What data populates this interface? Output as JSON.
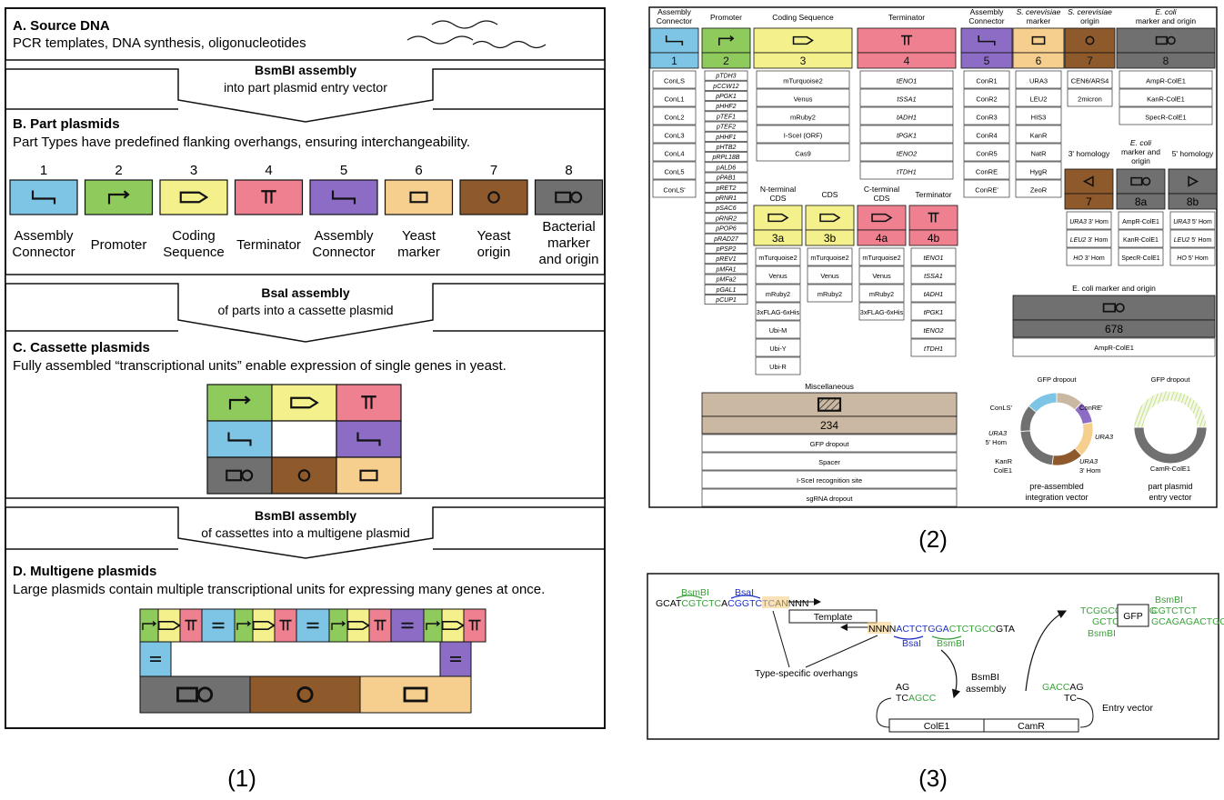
{
  "panel1": {
    "label": "(1)",
    "A": {
      "title": "A. Source DNA",
      "text": "PCR templates, DNA synthesis, oligonucleotides"
    },
    "arrowAB": {
      "title": "BsmBI assembly",
      "sub": "into part plasmid entry vector"
    },
    "B": {
      "title": "B. Part plasmids",
      "text": "Part Types have predefined flanking overhangs, ensuring interchangeability."
    },
    "parts": [
      {
        "num": "1",
        "label": [
          "Assembly",
          "Connector"
        ],
        "color": "#7ec4e4",
        "icon": "connector-icon"
      },
      {
        "num": "2",
        "label": [
          "Promoter"
        ],
        "color": "#8fcb5c",
        "icon": "promoter-arrow-icon"
      },
      {
        "num": "3",
        "label": [
          "Coding",
          "Sequence"
        ],
        "color": "#f4f08c",
        "icon": "cds-arrow-icon"
      },
      {
        "num": "4",
        "label": [
          "Terminator"
        ],
        "color": "#ee8090",
        "icon": "terminator-icon"
      },
      {
        "num": "5",
        "label": [
          "Assembly",
          "Connector"
        ],
        "color": "#8c6cc4",
        "icon": "connector-icon"
      },
      {
        "num": "6",
        "label": [
          "Yeast",
          "marker"
        ],
        "color": "#f6cf8e",
        "icon": "marker-rect-icon"
      },
      {
        "num": "7",
        "label": [
          "Yeast",
          "origin"
        ],
        "color": "#8e5a2c",
        "icon": "origin-circle-icon"
      },
      {
        "num": "8",
        "label": [
          "Bacterial",
          "marker",
          "and origin"
        ],
        "color": "#707070",
        "icon": "rect-circle-icon"
      }
    ],
    "arrowBC": {
      "title": "BsaI assembly",
      "sub": "of parts into a cassette plasmid"
    },
    "C": {
      "title": "C. Cassette plasmids",
      "text": "Fully assembled “transcriptional units” enable expression of single genes in yeast."
    },
    "arrowCD": {
      "title": "BsmBI assembly",
      "sub": "of cassettes into a multigene plasmid"
    },
    "D": {
      "title": "D. Multigene plasmids",
      "text": "Large plasmids contain multiple transcriptional units for expressing many genes at once."
    }
  },
  "panel2": {
    "label": "(2)",
    "columns": [
      {
        "header": [
          "Assembly",
          "Connector"
        ],
        "num": "1",
        "color": "#7ec4e4",
        "items": [
          "ConLS",
          "ConL1",
          "ConL2",
          "ConL3",
          "ConL4",
          "ConL5",
          "ConLS'"
        ],
        "italic": false
      },
      {
        "header": [
          "Promoter"
        ],
        "num": "2",
        "color": "#8fcb5c",
        "items": [
          "pTDH3",
          "pCCW12",
          "pPGK1",
          "pHHF2",
          "pTEF1",
          "pTEF2",
          "pHHF1",
          "pHTB2",
          "pRPL18B",
          "pALD6",
          "pPAB1",
          "pRET2",
          "pRNR1",
          "pSAC6",
          "pRNR2",
          "pPOP6",
          "pRAD27",
          "pPSP2",
          "pREV1",
          "pMFA1",
          "pMFa2",
          "pGAL1",
          "pCUP1"
        ],
        "italic": true
      },
      {
        "header": [
          "Coding Sequence"
        ],
        "num": "3",
        "color": "#f4f08c",
        "items": [
          "mTurquoise2",
          "Venus",
          "mRuby2",
          "I-SceI (ORF)",
          "Cas9"
        ],
        "italic": false
      },
      {
        "header": [
          "Terminator"
        ],
        "num": "4",
        "color": "#ee8090",
        "items": [
          "tENO1",
          "tSSA1",
          "tADH1",
          "tPGK1",
          "tENO2",
          "tTDH1"
        ],
        "italic": true
      },
      {
        "header": [
          "Assembly",
          "Connector"
        ],
        "num": "5",
        "color": "#8c6cc4",
        "items": [
          "ConR1",
          "ConR2",
          "ConR3",
          "ConR4",
          "ConR5",
          "ConRE",
          "ConRE'"
        ],
        "italic": false
      },
      {
        "header": [
          "S. cerevisiae",
          "marker"
        ],
        "num": "6",
        "color": "#f6cf8e",
        "items": [
          "URA3",
          "LEU2",
          "HIS3",
          "KanR",
          "NatR",
          "HygR",
          "ZeoR"
        ],
        "italic": false
      },
      {
        "header": [
          "S. cerevisiae",
          "origin"
        ],
        "num": "7",
        "color": "#8e5a2c",
        "items": [
          "CEN6/ARS4",
          "2micron"
        ],
        "italic": false
      },
      {
        "header": [
          "E. coli",
          "marker and origin"
        ],
        "num": "8",
        "color": "#707070",
        "items": [
          "AmpR-ColE1",
          "KanR-ColE1",
          "SpecR-ColE1"
        ],
        "italic": false
      }
    ],
    "sub": [
      {
        "header": [
          "N-terminal",
          "CDS"
        ],
        "num": "3a",
        "color": "#f4f08c",
        "items": [
          "mTurquoise2",
          "Venus",
          "mRuby2",
          "3xFLAG-6xHis",
          "Ubi-M",
          "Ubi-Y",
          "Ubi-R"
        ]
      },
      {
        "header": [
          "CDS"
        ],
        "num": "3b",
        "color": "#f4f08c",
        "items": [
          "mTurquoise2",
          "Venus",
          "mRuby2"
        ]
      },
      {
        "header": [
          "C-terminal",
          "CDS"
        ],
        "num": "4a",
        "color": "#ee8090",
        "items": [
          "mTurquoise2",
          "Venus",
          "mRuby2",
          "3xFLAG-6xHis"
        ]
      },
      {
        "header": [
          "Terminator"
        ],
        "num": "4b",
        "color": "#ee8090",
        "items": [
          "tENO1",
          "tSSA1",
          "tADH1",
          "tPGK1",
          "tENO2",
          "tTDH1"
        ]
      }
    ],
    "homology": [
      {
        "header": [
          "3' homology"
        ],
        "num": "7",
        "color": "#8e5a2c",
        "items": [
          "URA3 3' Hom",
          "LEU2 3' Hom",
          "HO 3' Hom"
        ]
      },
      {
        "header": [
          "E. coli",
          "marker and",
          "origin"
        ],
        "num": "8a",
        "color": "#707070",
        "items": [
          "AmpR-ColE1",
          "KanR-ColE1",
          "SpecR-ColE1"
        ]
      },
      {
        "header": [
          "5' homology"
        ],
        "num": "8b",
        "color": "#707070",
        "items": [
          "URA3 5' Hom",
          "LEU2 5' Hom",
          "HO 5' Hom"
        ]
      }
    ],
    "p678": {
      "header": "E. coli marker and origin",
      "num": "678",
      "item": "AmpR-ColE1"
    },
    "misc": {
      "header": "Miscellaneous",
      "num": "234",
      "items": [
        "GFP dropout",
        "Spacer",
        "I-SceI recognition site",
        "sgRNA dropout"
      ]
    },
    "plasmid1": {
      "top": "GFP dropout",
      "conls": "ConLS'",
      "conre": "ConRE'",
      "ura3_5": [
        "URA3",
        "5' Hom"
      ],
      "ura3_r": "URA3",
      "kanr": [
        "KanR",
        "ColE1"
      ],
      "ura3_3": [
        "URA3",
        "3' Hom"
      ],
      "caption": [
        "pre-assembled",
        "integration vector"
      ]
    },
    "plasmid2": {
      "top": "GFP dropout",
      "bottom": "CamR-ColE1",
      "caption": [
        "part plasmid",
        "entry vector"
      ]
    }
  },
  "panel3": {
    "label": "(3)",
    "seq1_pre": "GCAT",
    "seq1_green": "CGTCTC",
    "seq1_mid": "A",
    "seq1_blue": "CGGTCTC",
    "seq1_n": "ANNNN",
    "bsmbi_top": "BsmBI",
    "bsai_top": "BsaI",
    "template": "Template",
    "seq2_n": "NNNN",
    "seq2_blue": "ACTCTGGA",
    "seq2_green": "CTCTGCC",
    "seq2_post": "GTA",
    "bsai_bot": "BsaI",
    "bsmbi_bot": "BsmBI",
    "overhangs": "Type-specific overhangs",
    "assembly": [
      "BsmBI",
      "assembly"
    ],
    "gfp_left_top": "TCGGCGAGACG",
    "gfp_left_bot": "GCTCTGC",
    "gfp": "GFP",
    "gfp_right_top": "CGTCTCT",
    "gfp_right_bot": "GCAGAGACTGG",
    "bsmbi_r1": "BsmBI",
    "bsmbi_r2": "BsmBI",
    "ev_left_top": "AG",
    "ev_left_bot": "TCAGCC",
    "ev_right_top": "GACCAG",
    "ev_right_bot": "TC",
    "entry": "Entry vector",
    "cole1": "ColE1",
    "camr": "CamR"
  }
}
